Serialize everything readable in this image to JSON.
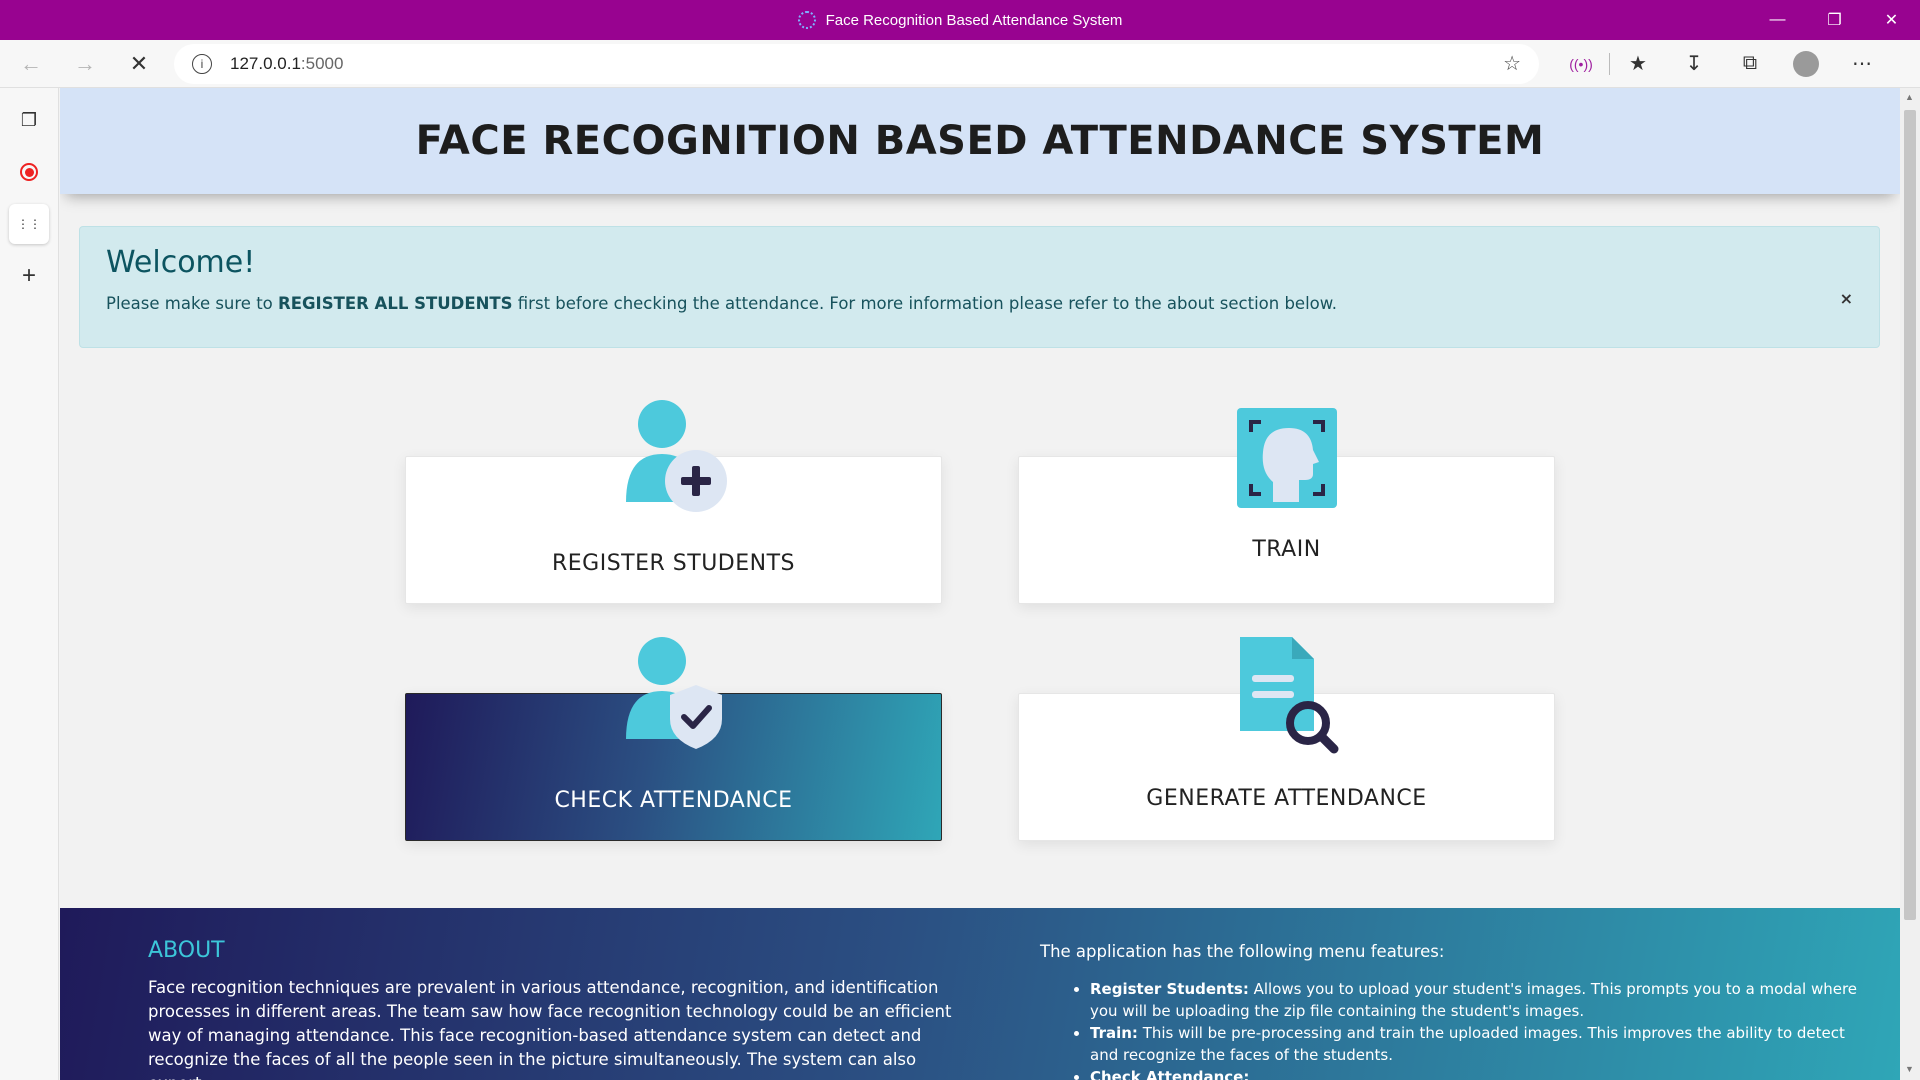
{
  "browser": {
    "window_title": "Face Recognition Based Attendance System",
    "url_host": "127.0.0.1",
    "url_port": ":5000"
  },
  "header": {
    "title": "FACE RECOGNITION BASED ATTENDANCE SYSTEM"
  },
  "alert": {
    "heading": "Welcome!",
    "text_before": "Please make sure to ",
    "text_bold": "REGISTER ALL STUDENTS",
    "text_after": " first before checking the attendance. For more information please refer to the about section below.",
    "close": "×"
  },
  "cards": {
    "register": "REGISTER STUDENTS",
    "train": "TRAIN",
    "check": "CHECK ATTENDANCE",
    "generate": "GENERATE ATTENDANCE"
  },
  "about": {
    "title": "ABOUT",
    "text": "Face recognition techniques are prevalent in various attendance, recognition, and identification processes in different areas. The team saw how face recognition technology could be an efficient way of managing attendance. This face recognition-based attendance system can detect and recognize the faces of all the people seen in the picture simultaneously. The system can also export",
    "features_title": "The application has the following menu features:",
    "features": [
      {
        "name": "Register Students:",
        "desc": " Allows you to upload your student's images. This prompts you to a modal where you will be uploading the zip file containing the student's images."
      },
      {
        "name": "Train:",
        "desc": " This will be pre-processing and train the uploaded images. This improves the ability to detect and recognize the faces of the students."
      },
      {
        "name": "Check Attendance:",
        "desc": ""
      }
    ]
  },
  "colors": {
    "titlebar": "#980390",
    "hero_bg": "#d5e3f7",
    "alert_bg": "#d2eaee",
    "accent": "#4dc9dc",
    "gradient_start": "#1f1a5a",
    "gradient_end": "#2fa6b7"
  }
}
